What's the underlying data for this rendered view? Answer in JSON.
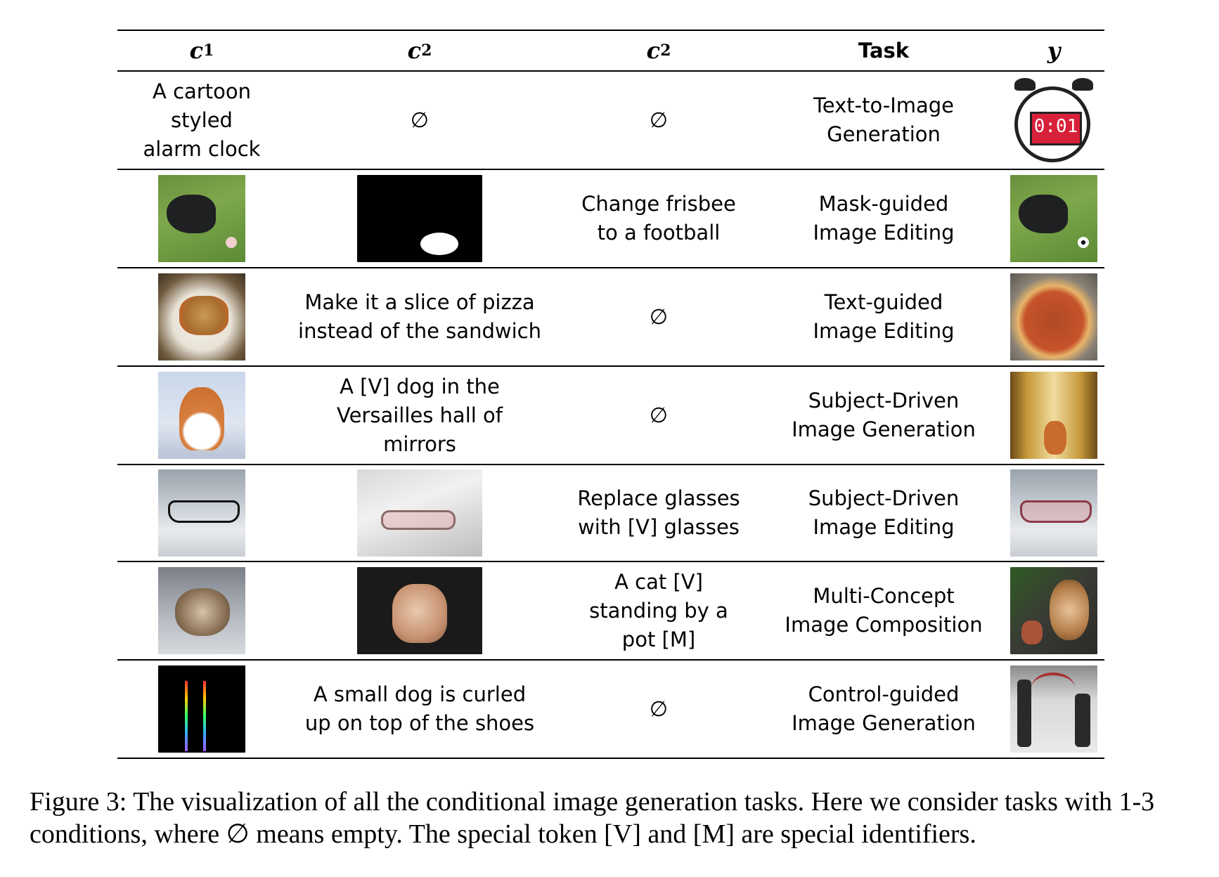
{
  "table": {
    "headers": {
      "c1": "c",
      "c1_sub": "1",
      "c2": "c",
      "c2_sub": "2",
      "c3": "c",
      "c3_sub": "2",
      "task": "Task",
      "y": "y"
    },
    "rows": [
      {
        "c1": "A cartoon\nstyled\nalarm clock",
        "c2": "∅",
        "c3": "∅",
        "task": "Text-to-Image\nGeneration",
        "y": "alarm-clock-image",
        "clock_display": "0:01"
      },
      {
        "c1": "dog-on-grass-image",
        "c2": "frisbee-mask-image",
        "c3": "Change frisbee\nto a football",
        "task": "Mask-guided\nImage Editing",
        "y": "dog-with-football-image"
      },
      {
        "c1": "food-plate-image",
        "c2": "Make it a slice of  pizza\ninstead of  the sandwich",
        "c3": "∅",
        "task": "Text-guided\nImage Editing",
        "y": "pizza-image"
      },
      {
        "c1": "corgi-image",
        "c2": "A [V] dog in the\nVersailles hall of\nmirrors",
        "c3": "∅",
        "task": "Subject-Driven\nImage Generation",
        "y": "corgi-in-hall-image"
      },
      {
        "c1": "black-glasses-image",
        "c2": "pink-glasses-on-sheet-image",
        "c3": "Replace glasses\nwith [V] glasses",
        "task": "Subject-Driven\nImage Editing",
        "y": "pink-glasses-image"
      },
      {
        "c1": "kitten-image",
        "c2": "carved-pot-image",
        "c3": "A cat [V]\nstanding by a\npot [M]",
        "task": "Multi-Concept\nImage Composition",
        "y": "cat-with-pot-image"
      },
      {
        "c1": "pose-skeleton-image",
        "c2": "A small dog is curled\nup on top of  the shoes",
        "c3": "∅",
        "task": "Control-guided\nImage Generation",
        "y": "dancers-image"
      }
    ]
  },
  "caption": "Figure 3: The visualization of all the conditional image generation tasks.  Here we consider tasks with 1-3 conditions, where ∅ means empty. The special token [V] and [M] are special identifiers."
}
